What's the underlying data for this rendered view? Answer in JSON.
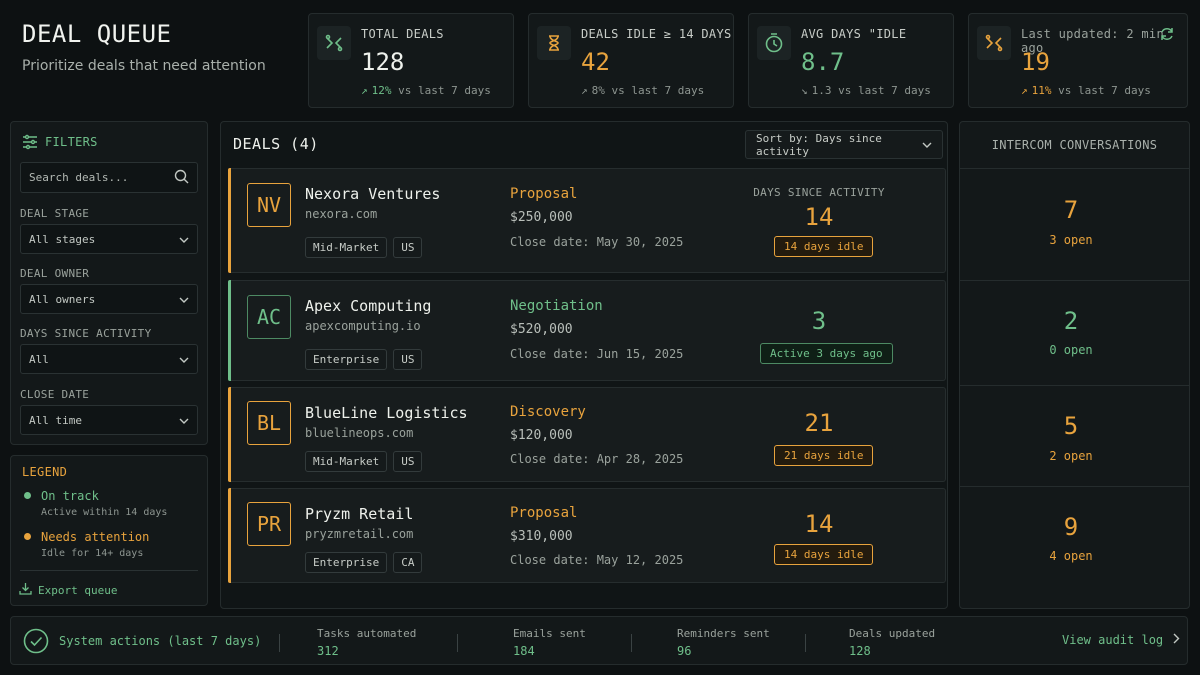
{
  "header": {
    "title": "DEAL QUEUE",
    "subtitle": "Prioritize deals that need attention"
  },
  "kpis": [
    {
      "label": "TOTAL DEALS",
      "value": "128",
      "trend_pct": "12%",
      "trend_text": "vs last 7 days",
      "trend_dir": "up",
      "icon": "shuffle-icon"
    },
    {
      "label": "DEALS IDLE ≥ 14 DAYS",
      "value": "42",
      "trend_pct": "8%",
      "trend_text": "vs last 7 days",
      "trend_dir": "up",
      "icon": "hourglass-icon"
    },
    {
      "label": "AVG DAYS \"IDLE",
      "value": "8.7",
      "trend_pct": "1.3",
      "trend_text": "vs last 7 days",
      "trend_dir": "down",
      "icon": "clock-icon"
    },
    {
      "label": "Last updated: 2 min ago",
      "value": "19",
      "trend_pct": "11%",
      "trend_text": "vs last 7 days",
      "trend_dir": "up",
      "icon": "shuffle-icon"
    }
  ],
  "filters": {
    "title": "FILTERS",
    "search_placeholder": "Search deals...",
    "stage_label": "DEAL STAGE",
    "stage_value": "All stages",
    "owner_label": "DEAL OWNER",
    "owner_value": "All owners",
    "days_label": "DAYS SINCE ACTIVITY",
    "days_value": "All",
    "close_label": "CLOSE DATE",
    "close_value": "All time"
  },
  "legend": {
    "title": "LEGEND",
    "items": [
      {
        "label": "On track",
        "desc": "Active within 14 days"
      },
      {
        "label": "Needs attention",
        "desc": "Idle for 14+ days"
      }
    ],
    "export": "Export queue"
  },
  "deals_panel": {
    "title": "DEALS (4)",
    "sort_label": "Sort by: Days since activity",
    "days_header": "DAYS SINCE ACTIVITY"
  },
  "deals": [
    {
      "initials": "NV",
      "name": "Nexora Ventures",
      "domain": "nexora.com",
      "tags": [
        "Mid-Market",
        "US"
      ],
      "stage": "Proposal",
      "amount": "$250,000",
      "close": "Close date: May 30, 2025",
      "days": "14",
      "pill": "14 days idle",
      "status": "attention"
    },
    {
      "initials": "AC",
      "name": "Apex Computing",
      "domain": "apexcomputing.io",
      "tags": [
        "Enterprise",
        "US"
      ],
      "stage": "Negotiation",
      "amount": "$520,000",
      "close": "Close date: Jun 15, 2025",
      "days": "3",
      "pill": "Active 3 days ago",
      "status": "ontrack"
    },
    {
      "initials": "BL",
      "name": "BlueLine Logistics",
      "domain": "bluelineops.com",
      "tags": [
        "Mid-Market",
        "US"
      ],
      "stage": "Discovery",
      "amount": "$120,000",
      "close": "Close date: Apr 28, 2025",
      "days": "21",
      "pill": "21 days idle",
      "status": "attention"
    },
    {
      "initials": "PR",
      "name": "Pryzm Retail",
      "domain": "pryzmretail.com",
      "tags": [
        "Enterprise",
        "CA"
      ],
      "stage": "Proposal",
      "amount": "$310,000",
      "close": "Close date: May 12, 2025",
      "days": "14",
      "pill": "14 days idle",
      "status": "attention"
    }
  ],
  "intercom": {
    "title": "INTERCOM CONVERSATIONS",
    "rows": [
      {
        "count": "7",
        "open": "3 open"
      },
      {
        "count": "2",
        "open": "0 open"
      },
      {
        "count": "5",
        "open": "2 open"
      },
      {
        "count": "9",
        "open": "4 open"
      }
    ]
  },
  "footer": {
    "title": "System actions (last 7 days)",
    "stats": [
      {
        "label": "Tasks automated",
        "value": "312"
      },
      {
        "label": "Emails sent",
        "value": "184"
      },
      {
        "label": "Reminders sent",
        "value": "96"
      },
      {
        "label": "Deals updated",
        "value": "128"
      }
    ],
    "audit": "View audit log"
  },
  "colors": {
    "attention": "#e8a33d",
    "ontrack": "#6fbf8a",
    "bg": "#0d1112",
    "panel": "#131819"
  }
}
